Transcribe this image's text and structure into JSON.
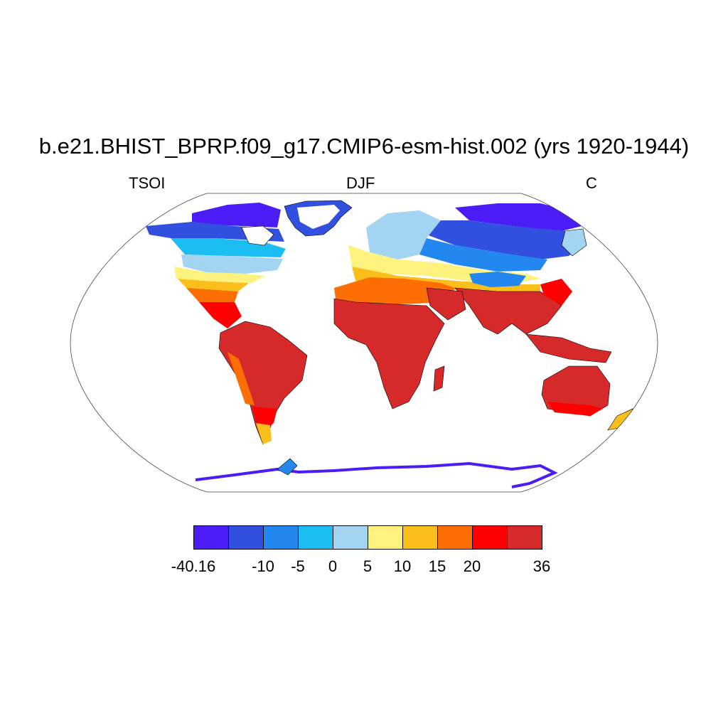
{
  "title": "b.e21.BHIST_BPRP.f09_g17.CMIP6-esm-hist.002 (yrs 1920-1944)",
  "subtitle_left": "TSOI",
  "subtitle_center": "DJF",
  "subtitle_right": "C",
  "colorbar": {
    "colors": [
      "#4b1cf5",
      "#3250e0",
      "#2288f0",
      "#1bbef3",
      "#a3d5f2",
      "#fdf27e",
      "#fbbf1c",
      "#fd6e04",
      "#fe0000",
      "#d62a2a"
    ],
    "tick_labels": [
      "-40.16",
      "-10",
      "-5",
      "0",
      "5",
      "10",
      "15",
      "20",
      "36"
    ]
  },
  "chart_data": {
    "type": "heatmap",
    "title": "b.e21.BHIST_BPRP.f09_g17.CMIP6-esm-hist.002 (yrs 1920-1944)",
    "variable": "TSOI",
    "season": "DJF",
    "units": "C",
    "levels": [
      -40.16,
      -15,
      -10,
      -5,
      0,
      5,
      10,
      15,
      20,
      28,
      36
    ],
    "colorbar_labels": [
      "-40.16",
      "-10",
      "-5",
      "0",
      "5",
      "10",
      "15",
      "20",
      "36"
    ]
  }
}
